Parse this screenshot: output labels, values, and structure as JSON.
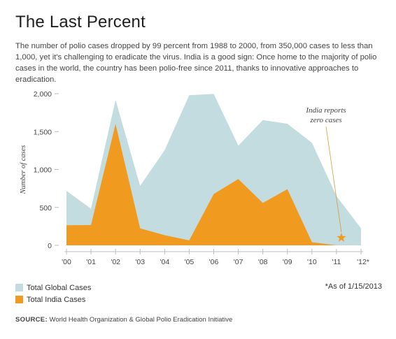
{
  "header": {
    "title": "The Last Percent",
    "subtitle": "The number of polio cases dropped by 99 percent from 1988 to 2000, from 350,000 cases to less than 1,000, yet it's challenging to eradicate the virus. India is a good sign: Once home to the majority of polio cases in the world, the country has been polio-free since 2011, thanks to innovative approaches to eradication."
  },
  "chart_data": {
    "type": "area",
    "x": [
      "'00",
      "'01",
      "'02",
      "'03",
      "'04",
      "'05",
      "'06",
      "'07",
      "'08",
      "'09",
      "'10",
      "'11",
      "'12*"
    ],
    "series": [
      {
        "name": "Total Global Cases",
        "color": "#c3dce0",
        "values": [
          719,
          483,
          1918,
          784,
          1255,
          1979,
          1997,
          1315,
          1651,
          1604,
          1352,
          650,
          223
        ]
      },
      {
        "name": "Total India Cases",
        "color": "#f09a1f",
        "values": [
          265,
          268,
          1600,
          225,
          134,
          66,
          676,
          874,
          559,
          741,
          42,
          1,
          0
        ]
      }
    ],
    "ylabel": "Number of cases",
    "yticks": [
      "0",
      "500",
      "1,000",
      "1,500",
      "2,000"
    ],
    "ytick_values": [
      0,
      500,
      1000,
      1500,
      2000
    ],
    "ylim": [
      0,
      2000
    ],
    "annotation": {
      "text_line1": "India reports",
      "text_line2": "zero cases",
      "x": 11.2,
      "y": 100,
      "marker": "star",
      "marker_color": "#f09a1f"
    },
    "legend_position": "bottom-left"
  },
  "footnote": "*As of 1/15/2013",
  "source": {
    "label": "SOURCE:",
    "text": " World Health Organization & Global Polio Eradication Initiative"
  }
}
